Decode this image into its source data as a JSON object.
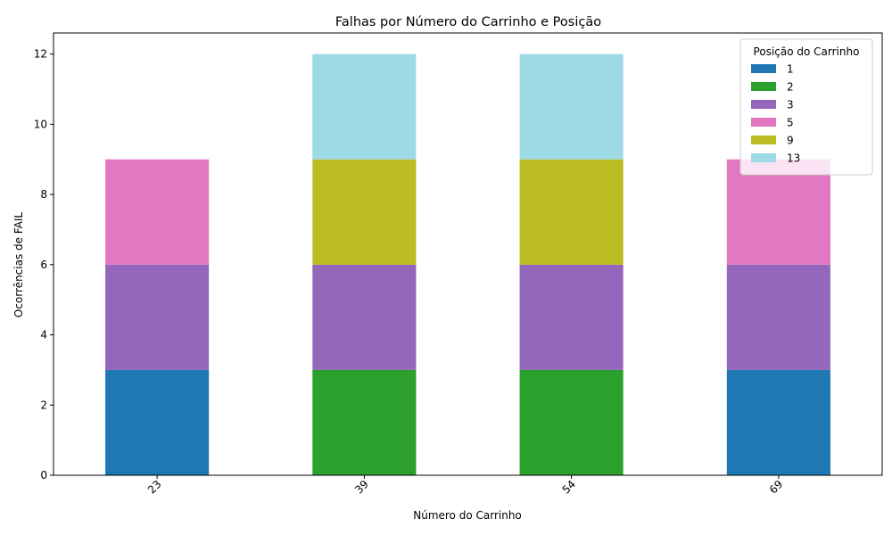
{
  "chart_data": {
    "type": "bar",
    "stacked": true,
    "title": "Falhas por Número do Carrinho e Posição",
    "xlabel": "Número do Carrinho",
    "ylabel": "Ocorrências de FAIL",
    "categories": [
      "23",
      "39",
      "54",
      "69"
    ],
    "ylim": [
      0,
      12.6
    ],
    "yticks": [
      0,
      2,
      4,
      6,
      8,
      10,
      12
    ],
    "grid": false,
    "legend": {
      "title": "Posição do Carrinho",
      "placement": "top-right"
    },
    "series": [
      {
        "name": "1",
        "color": "#1f77b4",
        "values": [
          3,
          0,
          0,
          3
        ]
      },
      {
        "name": "2",
        "color": "#2ca02c",
        "values": [
          0,
          3,
          3,
          0
        ]
      },
      {
        "name": "3",
        "color": "#9467bd",
        "values": [
          3,
          3,
          3,
          3
        ]
      },
      {
        "name": "5",
        "color": "#e377c2",
        "values": [
          3,
          0,
          0,
          3
        ]
      },
      {
        "name": "9",
        "color": "#bcbd22",
        "values": [
          0,
          3,
          3,
          0
        ]
      },
      {
        "name": "13",
        "color": "#9edae5",
        "values": [
          0,
          3,
          3,
          0
        ]
      }
    ]
  }
}
